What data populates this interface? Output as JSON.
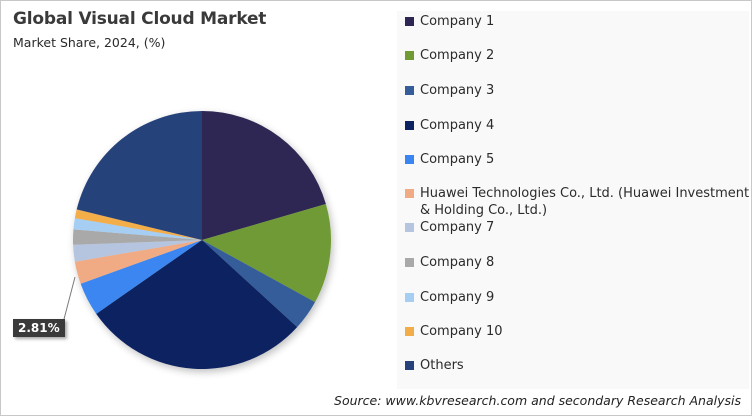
{
  "chart_data": {
    "type": "pie",
    "title": "Global Visual Cloud Market",
    "subtitle": "Market Share, 2024, (%)",
    "categories": [
      "Company 1",
      "Company 2",
      "Company 3",
      "Company 4",
      "Company 5",
      "Huawei Technologies Co., Ltd. (Huawei Investment & Holding Co., Ltd.)",
      "Company 7",
      "Company 8",
      "Company 9",
      "Company 10",
      "Others"
    ],
    "values": [
      20.5,
      12.5,
      3.8,
      28.5,
      4.2,
      2.81,
      2.1,
      1.9,
      1.4,
      1.1,
      21.19
    ],
    "colors": [
      "#2e2552",
      "#6f9a34",
      "#345d9a",
      "#0d2361",
      "#3a86f0",
      "#f0ab85",
      "#b5c5e0",
      "#a9a9a9",
      "#a6cdf2",
      "#f3ad48",
      "#27427a"
    ],
    "annotations": [
      {
        "category": "Huawei Technologies Co., Ltd. (Huawei Investment & Holding Co., Ltd.)",
        "label": "2.81%"
      }
    ],
    "legend_position": "right",
    "start_angle_deg": 0,
    "direction": "clockwise",
    "source": "Source: www.kbvresearch.com and secondary Research Analysis"
  },
  "header": {
    "title": "Global Visual Cloud Market",
    "subtitle": "Market Share, 2024, (%)"
  },
  "legend": {
    "items": [
      {
        "label": "Company 1",
        "color": "#2e2552"
      },
      {
        "label": "Company 2",
        "color": "#6f9a34"
      },
      {
        "label": "Company 3",
        "color": "#345d9a"
      },
      {
        "label": "Company 4",
        "color": "#0d2361"
      },
      {
        "label": "Company 5",
        "color": "#3a86f0"
      },
      {
        "label": "Huawei Technologies Co., Ltd. (Huawei Investment & Holding Co., Ltd.)",
        "color": "#f0ab85"
      },
      {
        "label": "Company 7",
        "color": "#b5c5e0"
      },
      {
        "label": "Company 8",
        "color": "#a9a9a9"
      },
      {
        "label": "Company 9",
        "color": "#a6cdf2"
      },
      {
        "label": "Company 10",
        "color": "#f3ad48"
      },
      {
        "label": "Others",
        "color": "#27427a"
      }
    ]
  },
  "callout": {
    "label": "2.81%"
  },
  "footer": {
    "source": "Source: www.kbvresearch.com and secondary Research Analysis"
  }
}
